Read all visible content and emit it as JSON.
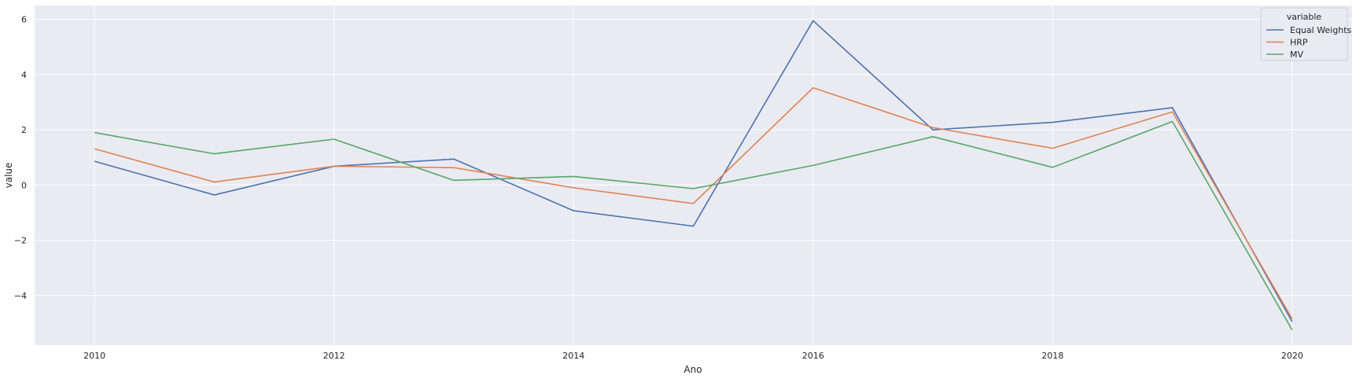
{
  "chart_data": {
    "type": "line",
    "title": "",
    "xlabel": "Ano",
    "ylabel": "value",
    "x": [
      2010,
      2011,
      2012,
      2013,
      2014,
      2015,
      2016,
      2017,
      2018,
      2019,
      2020
    ],
    "xticks": [
      "2010",
      "2012",
      "2014",
      "2016",
      "2018",
      "2020"
    ],
    "yticks": [
      "6",
      "4",
      "2",
      "0",
      "−2",
      "−4"
    ],
    "xlim": [
      2009.5,
      2020.5
    ],
    "ylim": [
      -5.8,
      6.5
    ],
    "grid": true,
    "legend_title": "variable",
    "legend_position": "top-right",
    "series": [
      {
        "name": "Equal Weights",
        "color": "#4c72b0",
        "values": [
          0.86,
          -0.36,
          0.68,
          0.94,
          -0.93,
          -1.49,
          5.95,
          2.0,
          2.27,
          2.8,
          -4.95
        ]
      },
      {
        "name": "HRP",
        "color": "#dd8452",
        "values": [
          1.31,
          0.11,
          0.68,
          0.63,
          -0.1,
          -0.67,
          3.52,
          2.08,
          1.33,
          2.65,
          -4.85
        ]
      },
      {
        "name": "MV",
        "color": "#55a868",
        "values": [
          1.9,
          1.13,
          1.66,
          0.17,
          0.31,
          -0.13,
          0.71,
          1.75,
          0.64,
          2.3,
          -5.25
        ]
      }
    ]
  }
}
